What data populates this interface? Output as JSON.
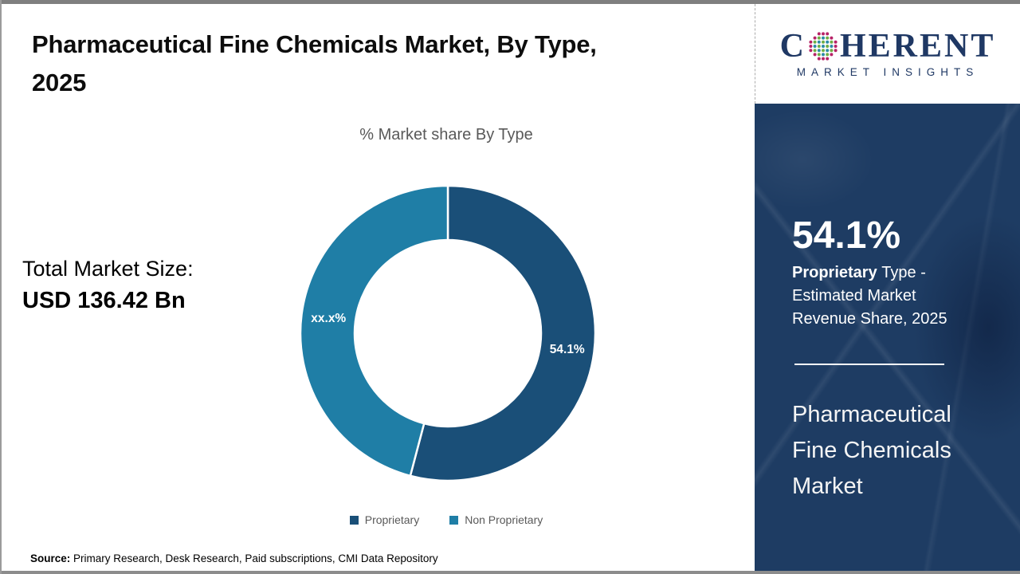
{
  "header": {
    "title_line1": "Pharmaceutical Fine Chemicals Market, By Type,",
    "title_line2": "2025"
  },
  "main": {
    "chart_title": "% Market share By Type",
    "total_label": "Total Market Size:",
    "total_value": "USD 136.42 Bn",
    "source_label": "Source:",
    "source_text": " Primary Research, Desk Research, Paid subscriptions, CMI Data Repository"
  },
  "chart_data": {
    "type": "pie",
    "subtype": "donut",
    "title": "% Market share By Type",
    "categories": [
      "Proprietary",
      "Non Proprietary"
    ],
    "values": [
      54.1,
      45.9
    ],
    "slice_labels": [
      "54.1%",
      "xx.x%"
    ],
    "colors": [
      "#1a4f78",
      "#1f7ea6"
    ],
    "legend_position": "bottom",
    "start_angle_deg": 0,
    "inner_radius_ratio": 0.63
  },
  "sidebar": {
    "logo": {
      "brand_first_letter": "C",
      "brand_rest": "HERENT",
      "subtitle": "MARKET INSIGHTS",
      "brand_color": "#1f3864"
    },
    "panel_color": "#1e3c63",
    "stat_value": "54.1%",
    "stat_bold": "Proprietary",
    "stat_line1_rest": " Type -",
    "stat_line2": "Estimated Market",
    "stat_line3": "Revenue Share, 2025",
    "market_name_lines": [
      "Pharmaceutical",
      "Fine Chemicals",
      "Market"
    ]
  }
}
